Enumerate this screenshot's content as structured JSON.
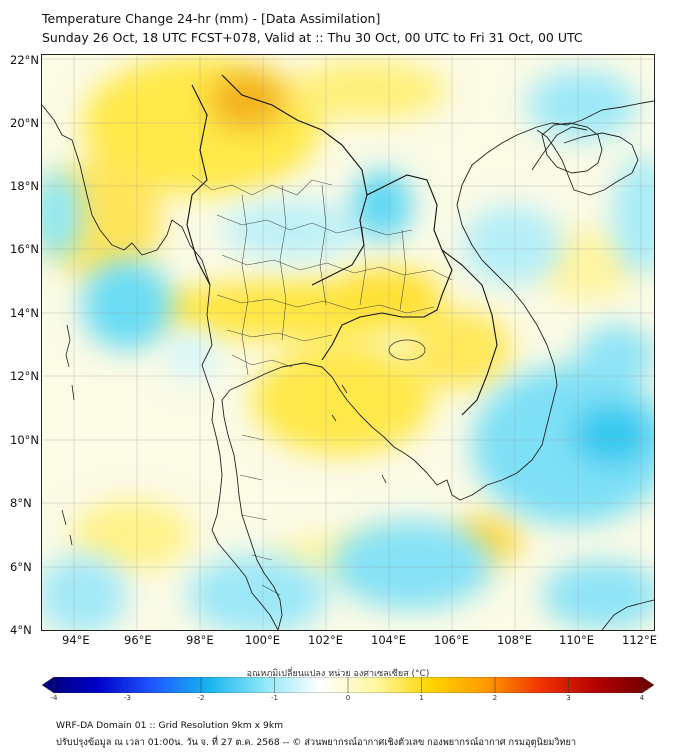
{
  "header": {
    "title": "Temperature Change 24-hr (mm) - [Data Assimilation]",
    "subtitle": "Sunday 26 Oct, 18 UTC FCST+078, Valid at :: Thu 30 Oct, 00 UTC to Fri 31 Oct, 00 UTC"
  },
  "map": {
    "lat_labels": [
      "22°N",
      "20°N",
      "18°N",
      "16°N",
      "14°N",
      "12°N",
      "10°N",
      "8°N",
      "6°N",
      "4°N"
    ],
    "lon_labels": [
      "94°E",
      "96°E",
      "98°E",
      "100°E",
      "102°E",
      "104°E",
      "106°E",
      "108°E",
      "110°E",
      "112°E"
    ],
    "lat_range": [
      4,
      22.2
    ],
    "lon_range": [
      93,
      112.4
    ],
    "colors": {
      "strong_warm": "#f2a800",
      "warm": "#ffe030",
      "light_warm": "#fff6a0",
      "light_cool": "#c4f3f9",
      "cool": "#6ee2f6",
      "strong_cool": "#1dc4f0"
    }
  },
  "colorbar": {
    "label": "อุณหภูมิเปลี่ยนแปลง หน่วย องศาเซลเซียส (°C)",
    "ticks": [
      "-4",
      "-3",
      "-2",
      "-1",
      "0",
      "1",
      "2",
      "3",
      "4"
    ],
    "min": -4,
    "max": 4,
    "stops": [
      "#000070",
      "#0000c8",
      "#1e5aff",
      "#18b4f0",
      "#8ee8f8",
      "#ffffff",
      "#fff7a0",
      "#ffd400",
      "#ff9800",
      "#f03000",
      "#b00000",
      "#6a0000"
    ]
  },
  "footer": {
    "line1": "WRF-DA Domain 01 :: Grid Resolution 9km x 9km",
    "line2": "ปรับปรุงข้อมูล ณ เวลา 01:00น. วัน จ. ที่ 27 ต.ค. 2568 -- © ส่วนพยากรณ์อากาศเชิงตัวเลข กองพยากรณ์อากาศ กรมอุตุนิยมวิทยา"
  }
}
